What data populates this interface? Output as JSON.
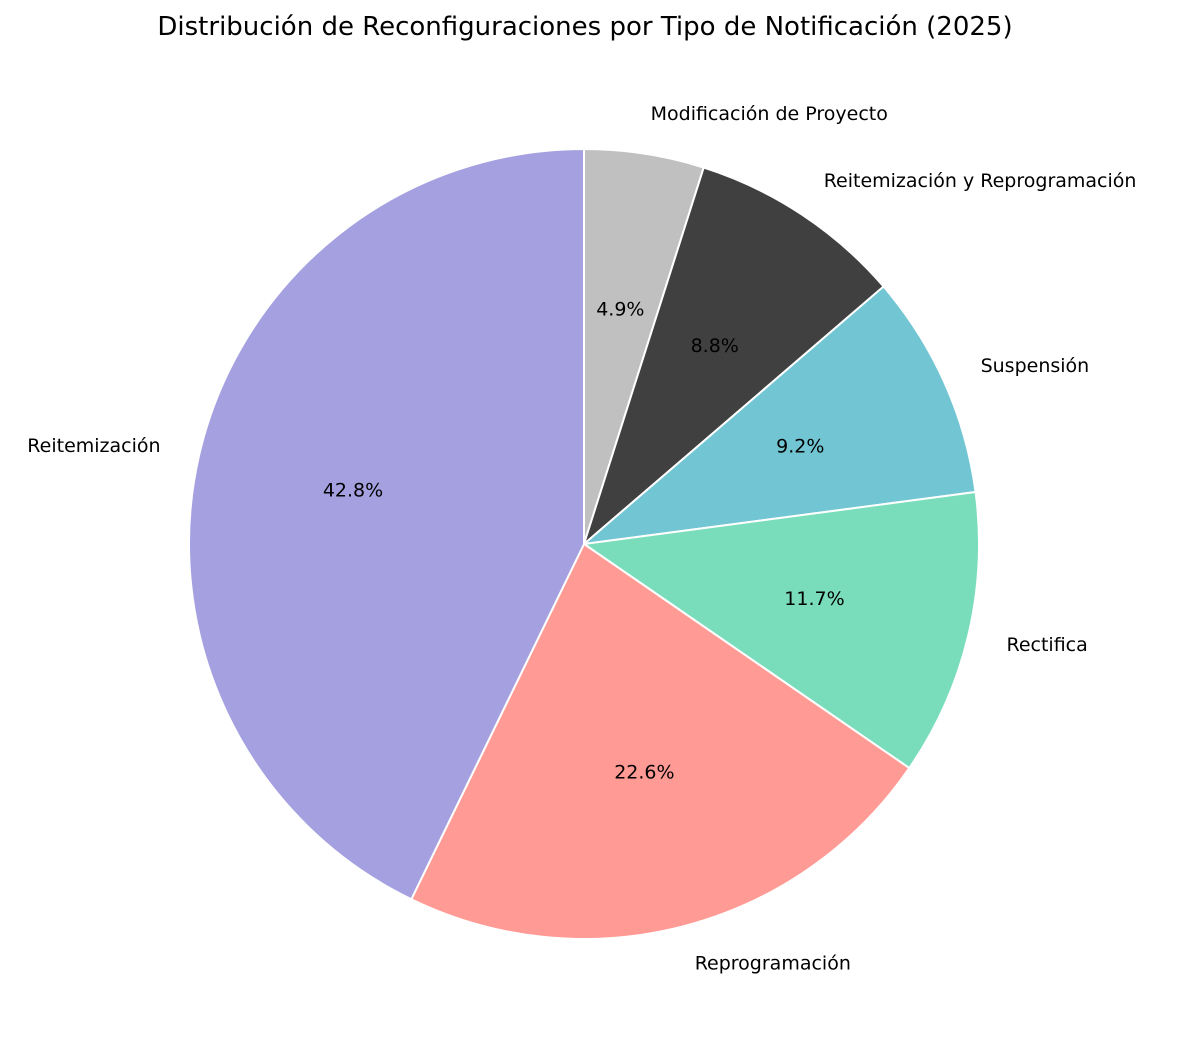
{
  "chart_data": {
    "type": "pie",
    "title": "Distribución de Reconfiguraciones por Tipo de Notificación (2025)",
    "start_angle_deg": 90,
    "direction": "clockwise",
    "slices": [
      {
        "label": "Modificación de Proyecto",
        "value": 4.9,
        "pct_label": "4.9%",
        "color": "#c0c0c0"
      },
      {
        "label": "Reitemización y Reprogramación",
        "value": 8.8,
        "pct_label": "8.8%",
        "color": "#404040"
      },
      {
        "label": "Suspensión",
        "value": 9.2,
        "pct_label": "9.2%",
        "color": "#72c6d4"
      },
      {
        "label": "Rectifica",
        "value": 11.7,
        "pct_label": "11.7%",
        "color": "#79ddbc"
      },
      {
        "label": "Reprogramación",
        "value": 22.6,
        "pct_label": "22.6%",
        "color": "#ff9a94"
      },
      {
        "label": "Reitemización",
        "value": 42.8,
        "pct_label": "42.8%",
        "color": "#a5a1e1"
      }
    ],
    "edge_color": "#ffffff"
  }
}
